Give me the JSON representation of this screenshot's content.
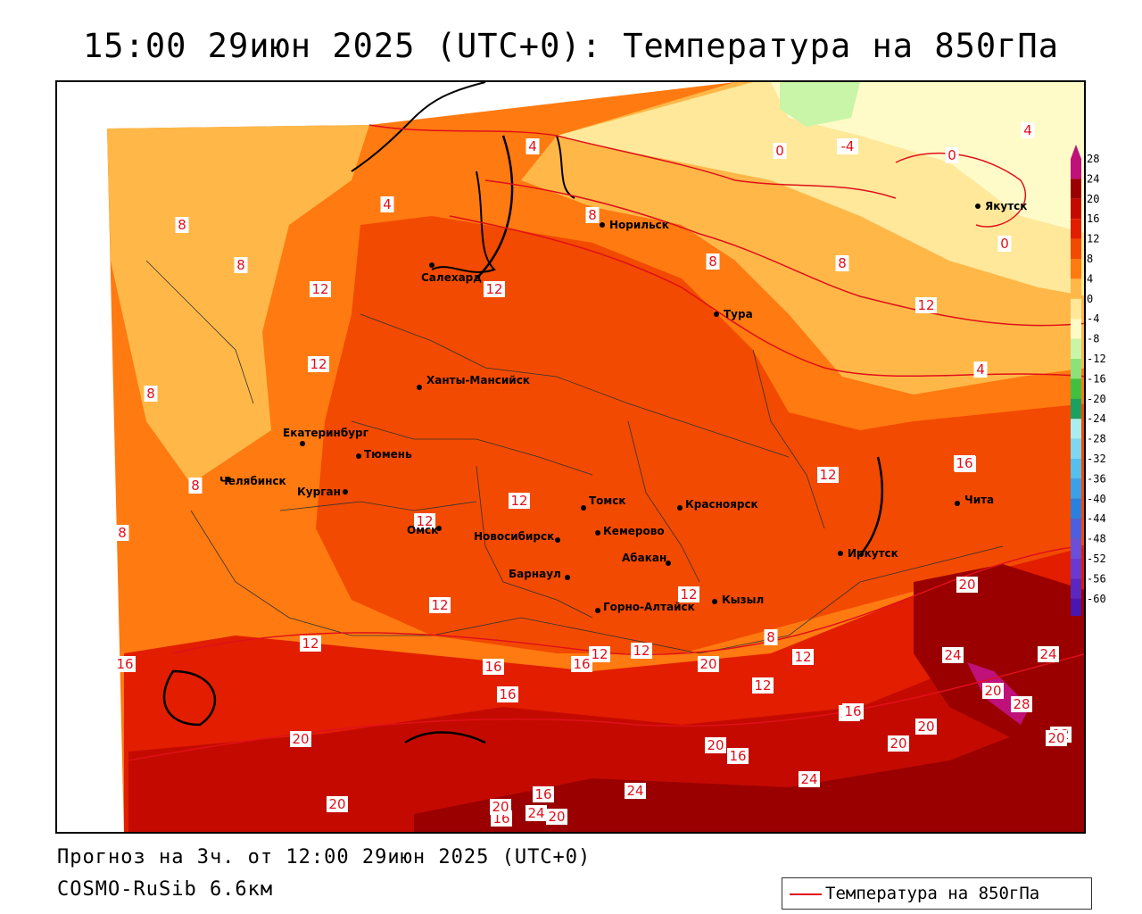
{
  "title": "15:00 29июн 2025 (UTC+0): Температура на 850гПа",
  "footer": {
    "forecast": "Прогноз на 3ч. от 12:00 29июн 2025 (UTC+0)",
    "model": "COSMO-RuSib 6.6км"
  },
  "legend": {
    "label": "Температура на 850гПа",
    "line_color": "#e0101a"
  },
  "scale": {
    "levels": [
      "28",
      "24",
      "20",
      "16",
      "12",
      "8",
      "4",
      "0",
      "-4",
      "-8",
      "-12",
      "-16",
      "-20",
      "-24",
      "-28",
      "-32",
      "-36",
      "-40",
      "-44",
      "-48",
      "-52",
      "-56",
      "-60"
    ],
    "colors": [
      "#c0107a",
      "#9a0000",
      "#c40a00",
      "#e21d00",
      "#f24a00",
      "#ff7a10",
      "#ffb848",
      "#ffe89a",
      "#fffbc8",
      "#c8f5a8",
      "#8be27a",
      "#40c040",
      "#1aa060",
      "#a8eef0",
      "#7fd6f0",
      "#55bfee",
      "#3aa0e8",
      "#2a80e0",
      "#4a60e0",
      "#6a50d8",
      "#6a3ad0",
      "#5a28c0",
      "#4a16b0"
    ]
  },
  "cities": [
    {
      "name": "Норильск"
    },
    {
      "name": "Якутск"
    },
    {
      "name": "Салехард"
    },
    {
      "name": "Тура"
    },
    {
      "name": "Ханты-Мансийск"
    },
    {
      "name": "Екатеринбург"
    },
    {
      "name": "Тюмень"
    },
    {
      "name": "Челябинск"
    },
    {
      "name": "Курган"
    },
    {
      "name": "Томск"
    },
    {
      "name": "Красноярск"
    },
    {
      "name": "Омск"
    },
    {
      "name": "Новосибирск"
    },
    {
      "name": "Кемерово"
    },
    {
      "name": "Чита"
    },
    {
      "name": "Иркутск"
    },
    {
      "name": "Абакан"
    },
    {
      "name": "Барнаул"
    },
    {
      "name": "Кызыл"
    },
    {
      "name": "Горно-Алтайск"
    }
  ],
  "contour_labels": [
    "4",
    "0",
    "-4",
    "0",
    "4",
    "8",
    "8",
    "4",
    "8",
    "0",
    "12",
    "12",
    "8",
    "8",
    "12",
    "4",
    "8",
    "12",
    "8",
    "12",
    "16",
    "12",
    "12",
    "8",
    "12",
    "16",
    "12",
    "12",
    "16",
    "12",
    "16",
    "20",
    "12",
    "16",
    "12",
    "16",
    "20",
    "20",
    "8",
    "12",
    "24",
    "24",
    "20",
    "12",
    "28",
    "16",
    "20",
    "20",
    "20",
    "20",
    "16",
    "16",
    "20",
    "24",
    "24",
    "16",
    "20",
    "20",
    "24",
    "20"
  ]
}
